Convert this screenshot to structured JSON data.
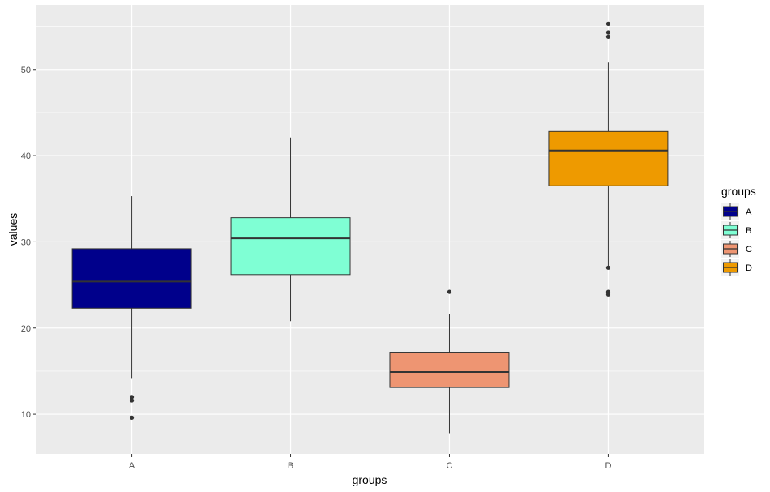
{
  "chart_data": {
    "type": "boxplot",
    "xlabel": "groups",
    "ylabel": "values",
    "categories": [
      "A",
      "B",
      "C",
      "D"
    ],
    "ylim": [
      5.4,
      57.5
    ],
    "yticks": [
      10,
      20,
      30,
      40,
      50
    ],
    "grid": true,
    "legend": {
      "title": "groups",
      "placement": "right",
      "entries": [
        "A",
        "B",
        "C",
        "D"
      ]
    },
    "series": [
      {
        "name": "A",
        "color": "#00008B",
        "whisker_low": 14.2,
        "q1": 22.3,
        "median": 25.4,
        "q3": 29.2,
        "whisker_high": 35.3,
        "outliers": [
          12.0,
          11.6,
          9.6
        ]
      },
      {
        "name": "B",
        "color": "#7FFFD4",
        "whisker_low": 20.8,
        "q1": 26.2,
        "median": 30.4,
        "q3": 32.8,
        "whisker_high": 42.1,
        "outliers": []
      },
      {
        "name": "C",
        "color": "#EE9572",
        "whisker_low": 7.8,
        "q1": 13.1,
        "median": 14.9,
        "q3": 17.2,
        "whisker_high": 21.6,
        "outliers": [
          24.2
        ]
      },
      {
        "name": "D",
        "color": "#EE9A00",
        "whisker_low": 27.2,
        "q1": 36.5,
        "median": 40.6,
        "q3": 42.8,
        "whisker_high": 50.8,
        "outliers": [
          55.3,
          54.3,
          53.8,
          27.0,
          24.2,
          23.9
        ]
      }
    ]
  }
}
